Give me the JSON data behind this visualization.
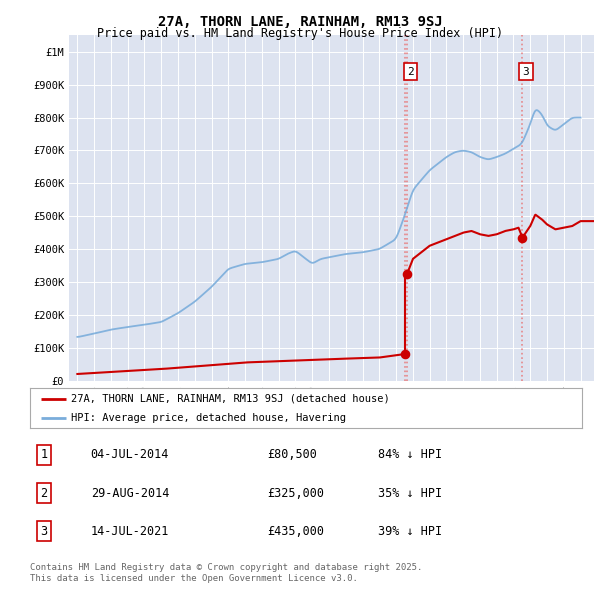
{
  "title": "27A, THORN LANE, RAINHAM, RM13 9SJ",
  "subtitle": "Price paid vs. HM Land Registry's House Price Index (HPI)",
  "background_color": "#ffffff",
  "plot_bg_color": "#dde3f0",
  "legend_label_red": "27A, THORN LANE, RAINHAM, RM13 9SJ (detached house)",
  "legend_label_blue": "HPI: Average price, detached house, Havering",
  "transactions": [
    {
      "num": 1,
      "date": "04-JUL-2014",
      "price": 80500,
      "pct": "84% ↓ HPI",
      "x": 2014.504
    },
    {
      "num": 2,
      "date": "29-AUG-2014",
      "price": 325000,
      "pct": "35% ↓ HPI",
      "x": 2014.66
    },
    {
      "num": 3,
      "date": "14-JUL-2021",
      "price": 435000,
      "pct": "39% ↓ HPI",
      "x": 2021.535
    }
  ],
  "footer": "Contains HM Land Registry data © Crown copyright and database right 2025.\nThis data is licensed under the Open Government Licence v3.0.",
  "ylim": [
    0,
    1050000
  ],
  "xlim": [
    1994.5,
    2025.8
  ],
  "yticks": [
    0,
    100000,
    200000,
    300000,
    400000,
    500000,
    600000,
    700000,
    800000,
    900000,
    1000000
  ],
  "ytick_labels": [
    "£0",
    "£100K",
    "£200K",
    "£300K",
    "£400K",
    "£500K",
    "£600K",
    "£700K",
    "£800K",
    "£900K",
    "£1M"
  ],
  "red_color": "#cc0000",
  "blue_color": "#7aaddb",
  "vline_color": "#e87070",
  "hpi_key_x": [
    1995,
    1996,
    1997,
    1998,
    1999,
    2000,
    2001,
    2002,
    2003,
    2004,
    2005,
    2006,
    2007,
    2007.5,
    2008,
    2008.5,
    2009,
    2009.5,
    2010,
    2011,
    2012,
    2013,
    2013.5,
    2014,
    2014.5,
    2015,
    2016,
    2017,
    2017.5,
    2018,
    2018.5,
    2019,
    2019.5,
    2020,
    2020.5,
    2021,
    2021.5,
    2022,
    2022.3,
    2022.7,
    2023,
    2023.5,
    2024,
    2024.5,
    2025
  ],
  "hpi_key_y": [
    132000,
    143000,
    155000,
    163000,
    170000,
    178000,
    205000,
    240000,
    285000,
    340000,
    355000,
    360000,
    370000,
    385000,
    395000,
    375000,
    355000,
    370000,
    375000,
    385000,
    390000,
    400000,
    415000,
    430000,
    500000,
    580000,
    640000,
    680000,
    695000,
    700000,
    695000,
    680000,
    672000,
    680000,
    690000,
    705000,
    720000,
    780000,
    830000,
    810000,
    775000,
    760000,
    780000,
    800000,
    800000
  ],
  "red_key_x": [
    1995,
    2000,
    2005,
    2010,
    2013,
    2014.5,
    2014.66,
    2015,
    2016,
    2017,
    2017.5,
    2018,
    2018.5,
    2019,
    2019.5,
    2020,
    2020.5,
    2021,
    2021.3,
    2021.535,
    2021.536,
    2022,
    2022.3,
    2022.7,
    2023,
    2023.5,
    2024,
    2024.5,
    2025
  ],
  "red_key_y": [
    20000,
    35000,
    55000,
    65000,
    70000,
    80500,
    325000,
    370000,
    410000,
    430000,
    440000,
    450000,
    455000,
    445000,
    440000,
    445000,
    455000,
    460000,
    465000,
    435000,
    435000,
    470000,
    505000,
    490000,
    475000,
    460000,
    465000,
    470000,
    485000
  ]
}
